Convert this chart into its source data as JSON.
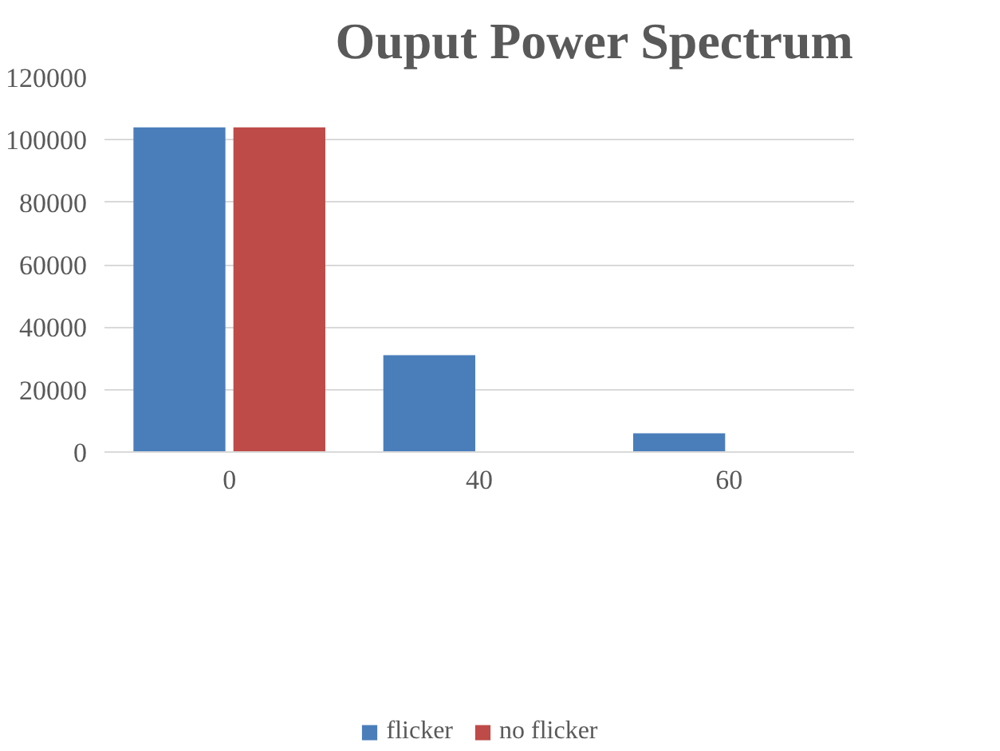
{
  "chart_data": {
    "type": "bar",
    "title": "Ouput Power Spectrum",
    "categories": [
      "0",
      "40",
      "60"
    ],
    "series": [
      {
        "name": "flicker",
        "color": "#4a7ebb",
        "values": [
          104000,
          31000,
          6000
        ]
      },
      {
        "name": "no flicker",
        "color": "#be4b48",
        "values": [
          104000,
          0,
          0
        ]
      }
    ],
    "ylim": [
      0,
      120000
    ],
    "yticks": [
      0,
      20000,
      40000,
      60000,
      80000,
      100000,
      120000
    ],
    "grid": "y",
    "legend": "bottom"
  }
}
